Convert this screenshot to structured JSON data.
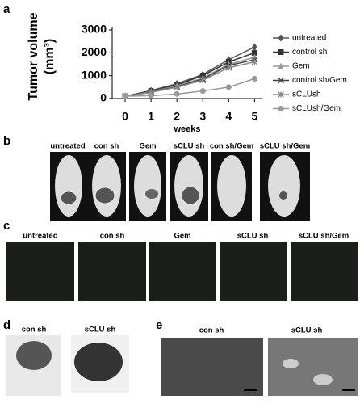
{
  "chart_data": {
    "type": "line",
    "ylabel": [
      "Tumor volume",
      "(mm³)"
    ],
    "xlabel": "weeks",
    "x": [
      0,
      1,
      2,
      3,
      4,
      5
    ],
    "xlim": [
      -0.5,
      5.3
    ],
    "xticks": [
      0,
      1,
      2,
      3,
      4,
      5
    ],
    "ylim": [
      0,
      3000
    ],
    "yticks": [
      0,
      1000,
      2000,
      3000
    ],
    "legend": "right",
    "series": [
      {
        "name": "untreated",
        "color": "#555555",
        "marker": "diamond",
        "values": [
          100,
          350,
          650,
          1050,
          1700,
          2250
        ]
      },
      {
        "name": "control sh",
        "color": "#333333",
        "marker": "square",
        "values": [
          100,
          330,
          600,
          1000,
          1600,
          2000
        ]
      },
      {
        "name": "Gem",
        "color": "#999999",
        "marker": "triangle",
        "values": [
          100,
          300,
          550,
          900,
          1500,
          1800
        ]
      },
      {
        "name": "control sh/Gem",
        "color": "#444444",
        "marker": "x",
        "values": [
          100,
          280,
          520,
          850,
          1450,
          1700
        ]
      },
      {
        "name": "sCLUsh",
        "color": "#888888",
        "marker": "star",
        "values": [
          100,
          270,
          500,
          800,
          1350,
          1600
        ]
      },
      {
        "name": "sCLUsh/Gem",
        "color": "#999999",
        "marker": "circle",
        "values": [
          100,
          130,
          200,
          330,
          500,
          870
        ]
      }
    ]
  },
  "panels": {
    "a": "a",
    "b": {
      "letter": "b",
      "labels": [
        "untreated",
        "con sh",
        "Gem",
        "sCLU sh",
        "con sh/Gem",
        "sCLU sh/Gem"
      ]
    },
    "c": {
      "letter": "c",
      "labels": [
        "untreated",
        "con sh",
        "Gem",
        "sCLU sh",
        "sCLU sh/Gem"
      ]
    },
    "d": {
      "letter": "d",
      "labels": [
        "con sh",
        "sCLU sh"
      ]
    },
    "e": {
      "letter": "e",
      "labels": [
        "con sh",
        "sCLU sh"
      ]
    }
  }
}
